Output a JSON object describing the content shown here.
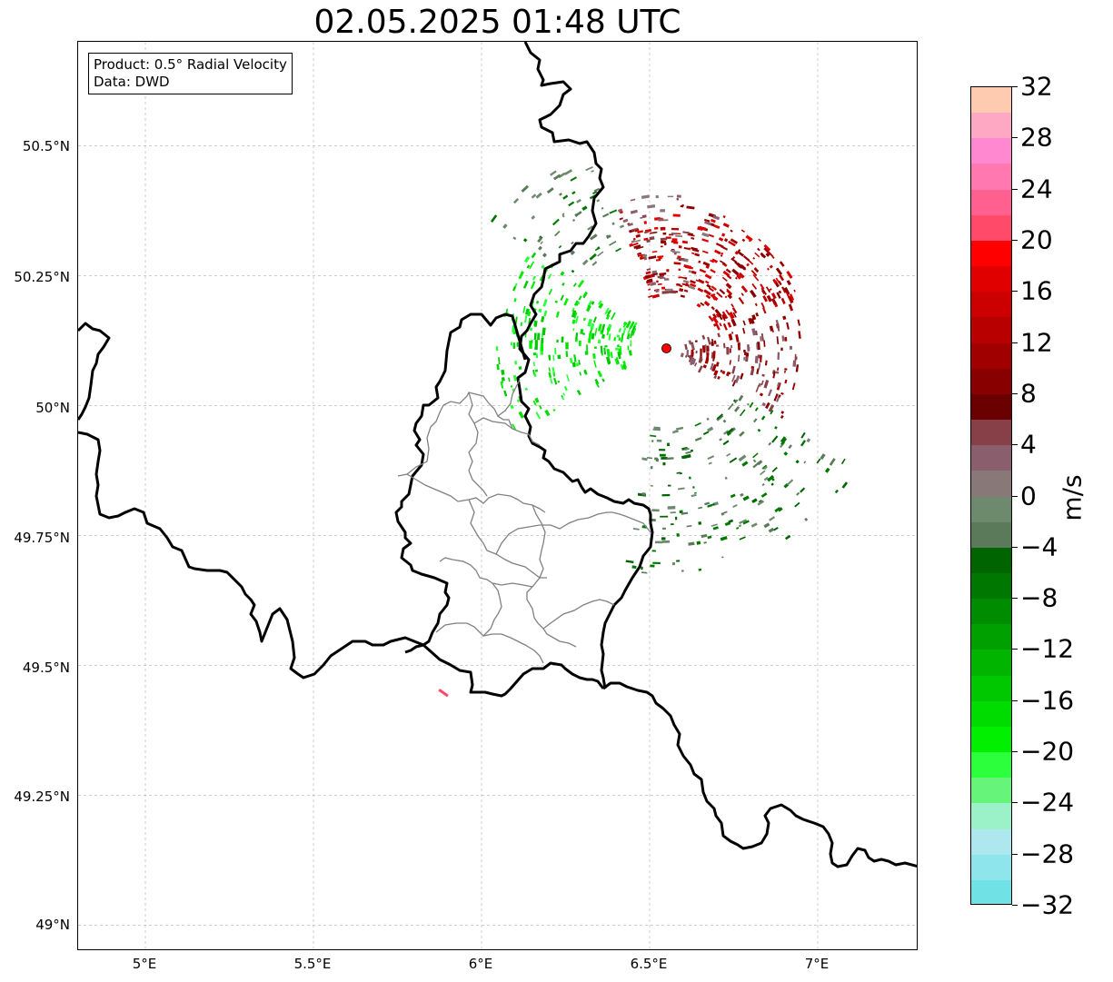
{
  "title": "02.05.2025 01:48 UTC",
  "info_box": {
    "product": "Product: 0.5° Radial Velocity",
    "data_source": "Data: DWD"
  },
  "axes": {
    "x_ticks": [
      "5°E",
      "5.5°E",
      "6°E",
      "6.5°E",
      "7°E"
    ],
    "y_ticks": [
      "50.5°N",
      "50.25°N",
      "50°N",
      "49.75°N",
      "49.5°N",
      "49.25°N",
      "49°N"
    ],
    "x_tick_values": [
      5.0,
      5.5,
      6.0,
      6.5,
      7.0
    ],
    "y_tick_values": [
      50.5,
      50.25,
      50.0,
      49.75,
      49.5,
      49.25,
      49.0
    ],
    "lon_range": [
      4.8,
      7.3
    ],
    "lat_range": [
      48.95,
      50.7
    ],
    "grid": true
  },
  "radar_site": {
    "lon": 6.55,
    "lat": 50.11,
    "color": "#ff0000"
  },
  "colorbar": {
    "unit": "m/s",
    "min": -32,
    "max": 32,
    "tick_labels": [
      "32",
      "28",
      "24",
      "20",
      "16",
      "12",
      "8",
      "4",
      "0",
      "−4",
      "−8",
      "−12",
      "−16",
      "−20",
      "−24",
      "−28",
      "−32"
    ],
    "tick_values": [
      32,
      28,
      24,
      20,
      16,
      12,
      8,
      4,
      0,
      -4,
      -8,
      -12,
      -16,
      -20,
      -24,
      -28,
      -32
    ],
    "colors_top_to_bottom": [
      "#ffcbb0",
      "#ffa8c4",
      "#ff88d0",
      "#ff78b0",
      "#ff6090",
      "#ff4a6a",
      "#ff0000",
      "#e00000",
      "#cc0000",
      "#b80000",
      "#a00000",
      "#880000",
      "#6a0000",
      "#884048",
      "#8a5e6c",
      "#887878",
      "#6e8a6e",
      "#5a7a5a",
      "#006400",
      "#007800",
      "#008c00",
      "#00a000",
      "#00b400",
      "#00c800",
      "#00dc00",
      "#00f000",
      "#2cff3c",
      "#66f57a",
      "#9cf2c8",
      "#aee8ee",
      "#8ee6ec",
      "#70e2e6"
    ]
  },
  "legend_colors": {
    "border_major": "#000000",
    "border_minor": "#808080",
    "grid": "#b0b0b0"
  }
}
